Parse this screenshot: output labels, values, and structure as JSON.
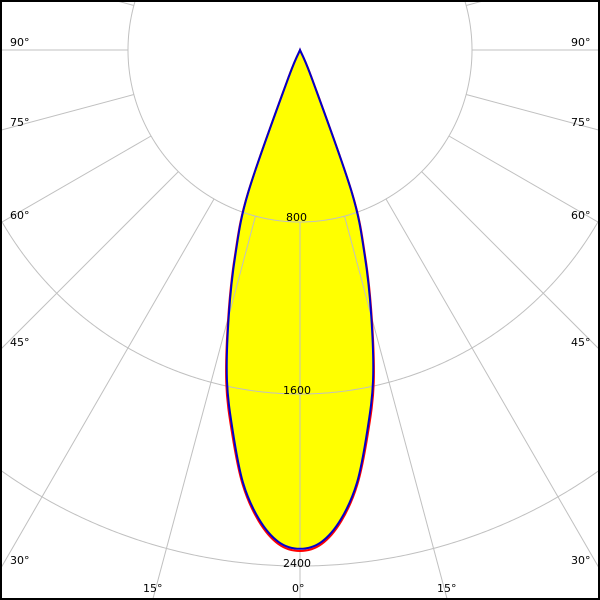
{
  "chart_data": {
    "type": "line",
    "coordinate_system": "polar",
    "title": "",
    "radial_ticks": [
      800,
      1600,
      2400
    ],
    "radial_tick_labels": [
      "800",
      "1600",
      "2400"
    ],
    "angle_ticks": [
      0,
      15,
      30,
      45,
      60,
      75,
      90
    ],
    "angle_labels_left": [
      "90°",
      "75°",
      "60°",
      "45°",
      "30°",
      "15°",
      "0°"
    ],
    "angle_labels_right": [
      "90°",
      "75°",
      "60°",
      "45°",
      "30°",
      "15°"
    ],
    "grid": true,
    "fill_color": "#ffff00",
    "grid_color": "#c0c0c0",
    "angles": [
      0,
      2.5,
      5,
      7.5,
      10,
      12.5,
      15,
      17.5,
      20,
      22.5,
      25
    ],
    "series": [
      {
        "color": "#ff0000",
        "values": [
          2330,
          2300,
          2200,
          2040,
          1815,
          1585,
          1290,
          1010,
          710,
          160,
          0
        ]
      },
      {
        "color": "#0000cc",
        "values": [
          2320,
          2290,
          2190,
          2030,
          1800,
          1570,
          1280,
          1000,
          700,
          150,
          0
        ]
      }
    ]
  }
}
